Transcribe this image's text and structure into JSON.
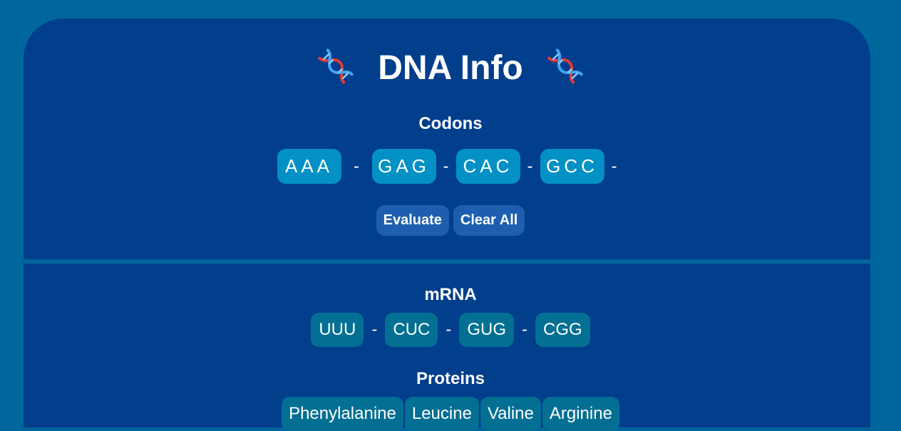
{
  "header": {
    "title": "DNA Info",
    "left_icon": "dna-icon",
    "right_icon": "dna-icon"
  },
  "codons": {
    "heading": "Codons",
    "items": [
      "AAA",
      "GAG",
      "CAC",
      "GCC"
    ],
    "separator": "-"
  },
  "actions": {
    "evaluate_label": "Evaluate",
    "clear_label": "Clear All"
  },
  "mrna": {
    "heading": "mRNA",
    "items": [
      "UUU",
      "CUC",
      "GUG",
      "CGG"
    ],
    "separator": "-"
  },
  "proteins": {
    "heading": "Proteins",
    "items": [
      "Phenylalanine",
      "Leucine",
      "Valine",
      "Arginine"
    ]
  },
  "colors": {
    "page_bg": "#00669e",
    "card_bg": "#013e8c",
    "codon_box": "#0391c5",
    "button": "#1d5fae",
    "mrna_box": "#026f93"
  }
}
